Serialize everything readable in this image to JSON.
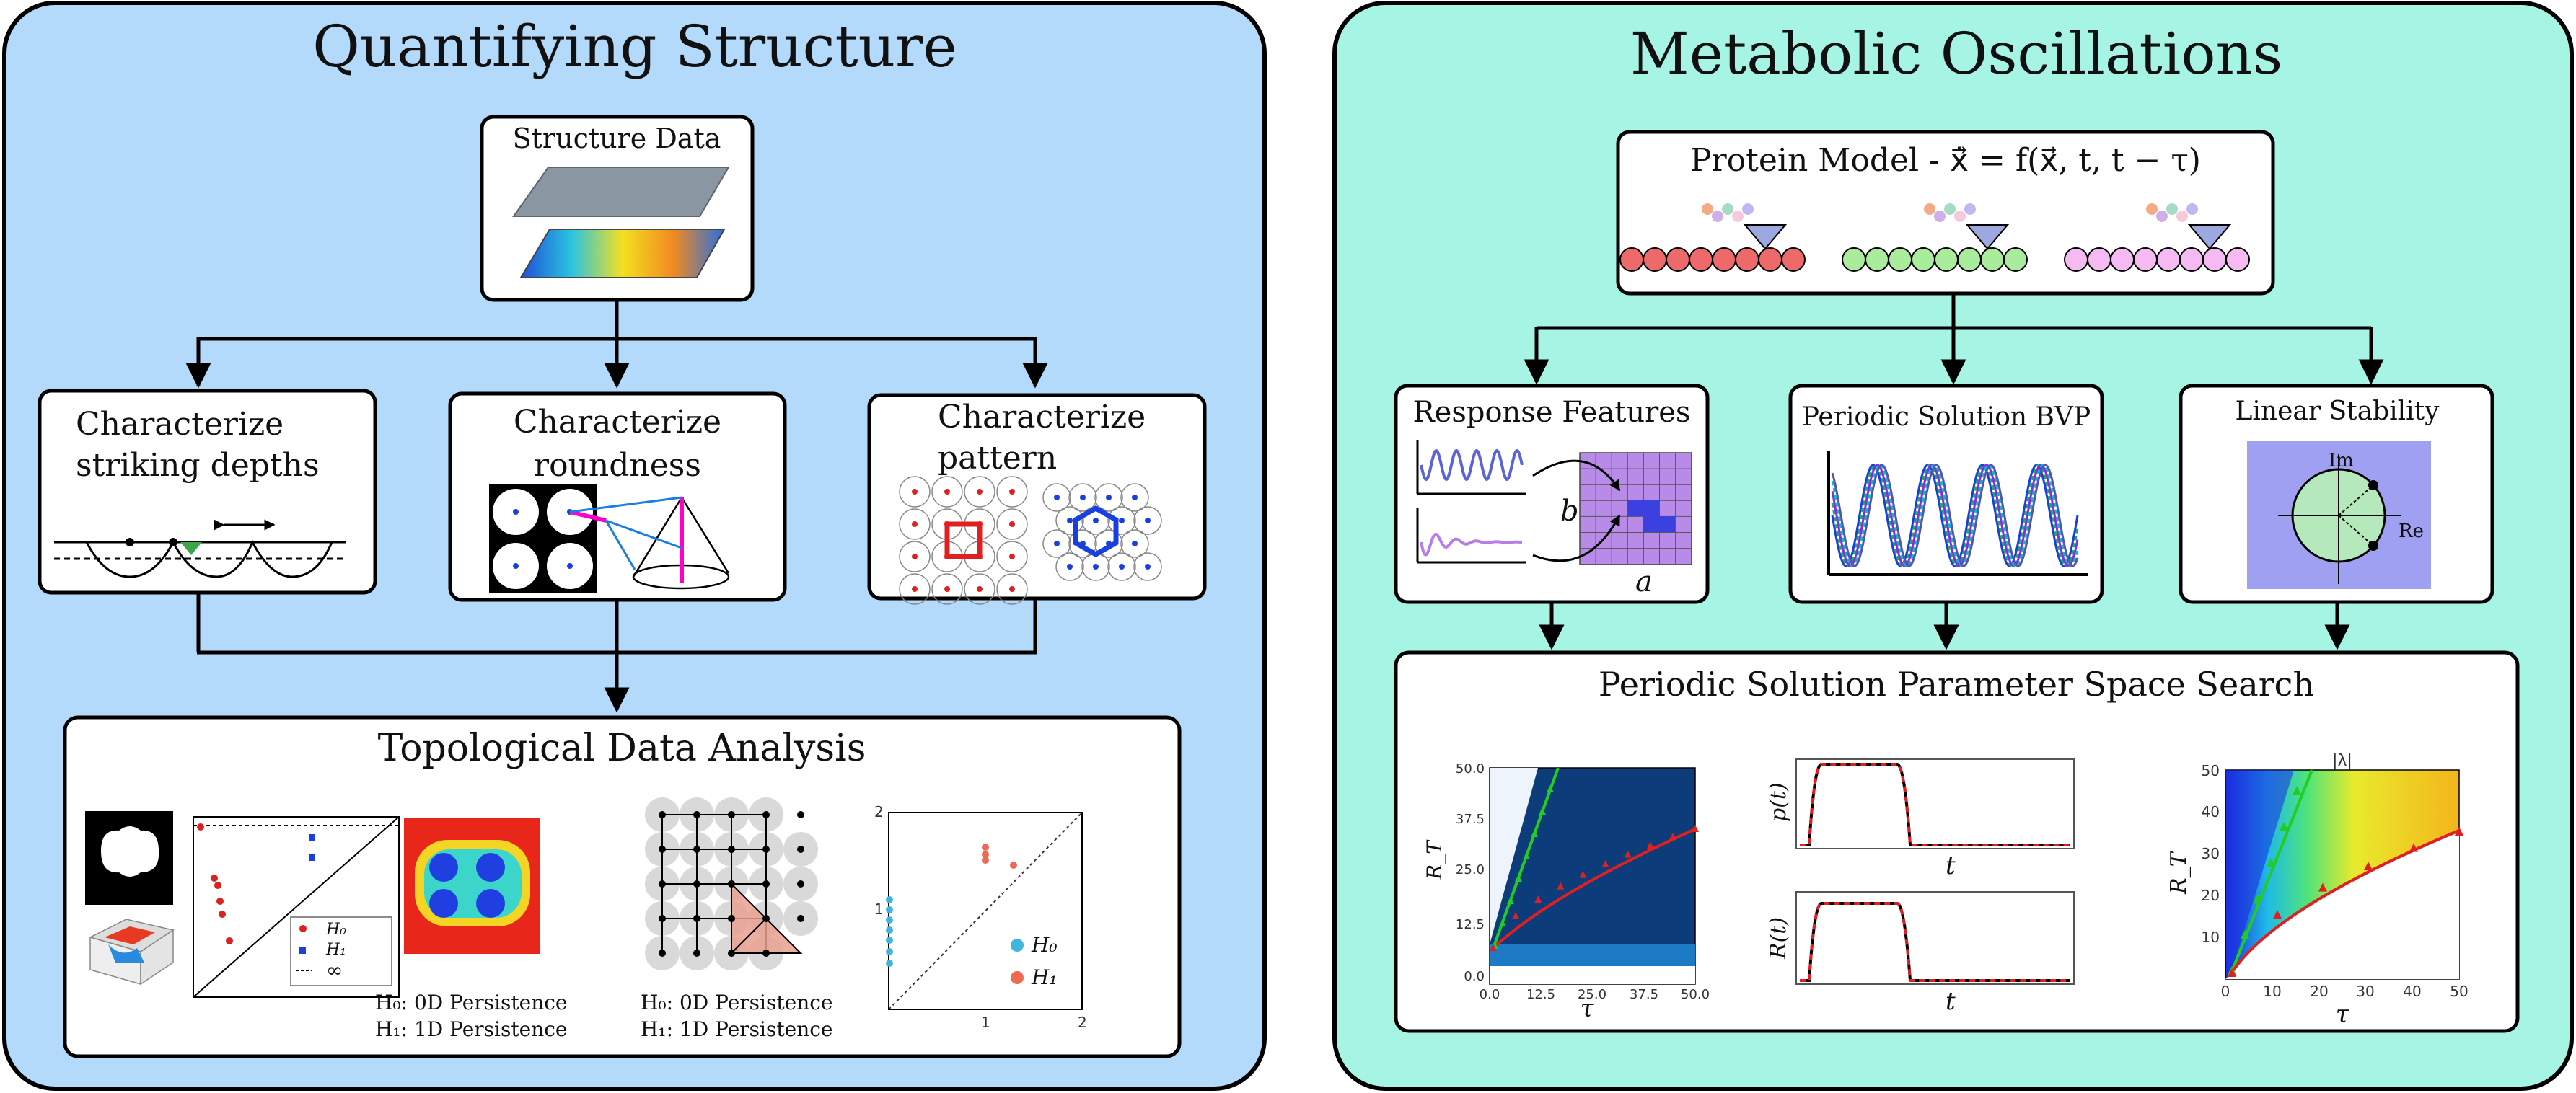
{
  "colors": {
    "left_panel_bg": "#b3d9fb",
    "right_panel_bg": "#a6f4e3",
    "box_bg": "#ffffff",
    "stroke": "#000000",
    "red": "#e02020",
    "green": "#22cc22",
    "blue": "#1a3fe0",
    "purple_grid": "#b98be8",
    "navy": "#0c3d7a"
  },
  "left": {
    "title": "Quantifying Structure",
    "structure_data": "Structure Data",
    "char_depths": [
      "Characterize",
      "striking depths"
    ],
    "char_roundness": [
      "Characterize",
      "roundness"
    ],
    "char_pattern": [
      "Characterize",
      "pattern"
    ],
    "tda": {
      "title": "Topological Data Analysis",
      "legend_h0": "H₀",
      "legend_h1": "H₁",
      "legend_inf": "∞",
      "caption1_h0": "H₀: 0D Persistence",
      "caption1_h1": "H₁: 1D Persistence",
      "caption2_h0": "H₀: 0D Persistence",
      "caption2_h1": "H₁: 1D Persistence",
      "pd2_ticks": [
        "2",
        "1",
        "1",
        "2"
      ],
      "pd2_legend_h0": "H₀",
      "pd2_legend_h1": "H₁"
    }
  },
  "right": {
    "title": "Metabolic Oscillations",
    "protein_model": "Protein Model - x⃗̇ = f(x⃗, t, t − τ)",
    "response_features": "Response Features",
    "rf_b": "b",
    "rf_a": "a",
    "periodic_bvp": "Periodic Solution BVP",
    "linear_stability": "Linear Stability",
    "ls_im": "Im",
    "ls_re": "Re",
    "param_search": {
      "title": "Periodic Solution Parameter Space Search",
      "heat1": {
        "ylabel": "R_T",
        "xlabel": "τ",
        "yticks": [
          "50.0",
          "37.5",
          "25.0",
          "12.5",
          "0.0"
        ],
        "xticks": [
          "0.0",
          "12.5",
          "25.0",
          "37.5",
          "50.0"
        ]
      },
      "p_label": "p(t)",
      "p_xlabel": "t",
      "r_label": "R(t)",
      "r_xlabel": "t",
      "heat2": {
        "title": "|λ|",
        "ylabel": "R_T",
        "xlabel": "τ",
        "yticks": [
          "50",
          "40",
          "30",
          "20",
          "10"
        ],
        "xticks": [
          "0",
          "10",
          "20",
          "30",
          "40",
          "50"
        ]
      }
    }
  }
}
